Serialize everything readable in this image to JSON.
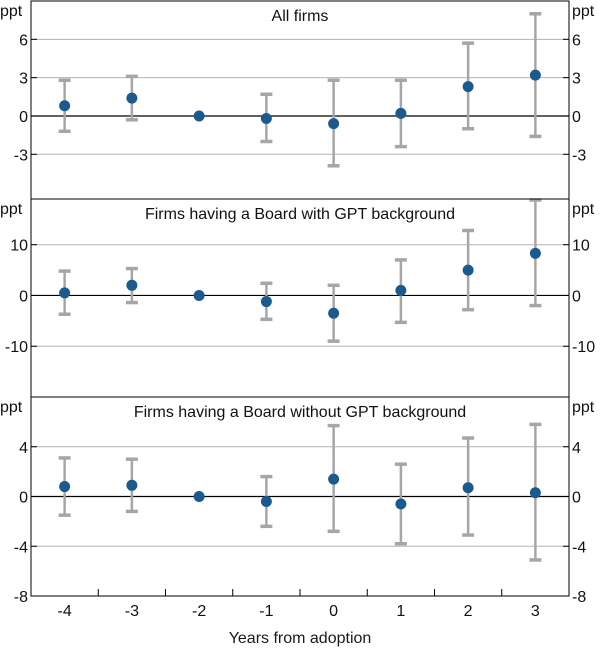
{
  "chart_data": {
    "type": "scatter",
    "subtype": "point-estimates-with-error-bars",
    "xlabel": "Years from adoption",
    "x": [
      -4,
      -3,
      -2,
      -1,
      0,
      1,
      2,
      3
    ],
    "x_tick_labels": [
      "-4",
      "-3",
      "-2",
      "-1",
      "0",
      "1",
      "2",
      "3"
    ],
    "unit_label": "ppt",
    "colors": {
      "point": "#1b5a8e",
      "error_bar": "#a6a6a6",
      "zero_line": "#000000",
      "gridline": "#b3b3b3",
      "frame": "#000000"
    },
    "panels": [
      {
        "title": "All firms",
        "ylim": [
          -6.5,
          9
        ],
        "yticks": [
          -3,
          0,
          3,
          6
        ],
        "ytick_labels": [
          "-3",
          "0",
          "3",
          "6"
        ],
        "estimates": [
          0.8,
          1.4,
          0.0,
          -0.2,
          -0.6,
          0.2,
          2.3,
          3.2
        ],
        "ci_low": [
          -1.2,
          -0.3,
          0.0,
          -2.0,
          -3.9,
          -2.4,
          -1.0,
          -1.6
        ],
        "ci_high": [
          2.8,
          3.1,
          0.0,
          1.7,
          2.8,
          2.8,
          5.7,
          8.0
        ]
      },
      {
        "title": "Firms having a Board with GPT background",
        "ylim": [
          -20,
          19
        ],
        "yticks": [
          -10,
          0,
          10
        ],
        "ytick_labels": [
          "-10",
          "0",
          "10"
        ],
        "estimates": [
          0.5,
          2.0,
          0.0,
          -1.2,
          -3.5,
          1.0,
          5.0,
          8.3
        ],
        "ci_low": [
          -3.7,
          -1.4,
          0.0,
          -4.7,
          -9.0,
          -5.3,
          -2.8,
          -2.0
        ],
        "ci_high": [
          4.8,
          5.3,
          0.0,
          2.4,
          2.0,
          7.0,
          12.8,
          18.8
        ]
      },
      {
        "title": "Firms having a Board without GPT background",
        "ylim": [
          -8,
          8
        ],
        "yticks": [
          -8,
          -4,
          0,
          4
        ],
        "ytick_labels": [
          "-8",
          "-4",
          "0",
          "4"
        ],
        "estimates": [
          0.8,
          0.9,
          0.0,
          -0.4,
          1.4,
          -0.6,
          0.7,
          0.3
        ],
        "ci_low": [
          -1.5,
          -1.2,
          0.0,
          -2.4,
          -2.8,
          -3.8,
          -3.1,
          -5.1
        ],
        "ci_high": [
          3.1,
          3.0,
          0.0,
          1.6,
          5.7,
          2.6,
          4.7,
          5.8
        ]
      }
    ]
  }
}
